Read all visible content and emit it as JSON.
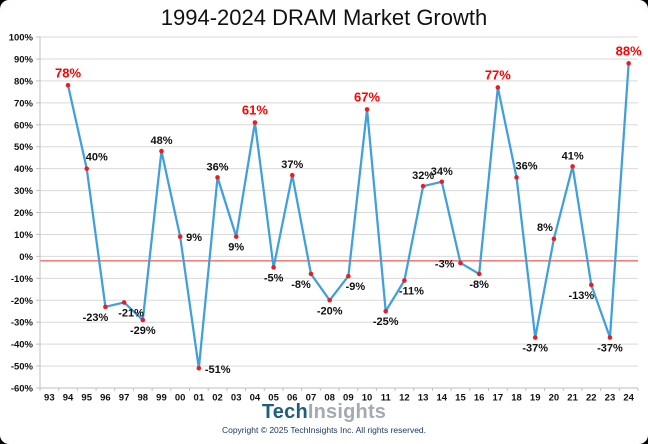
{
  "title": "1994-2024 DRAM Market Growth",
  "footer": {
    "logo_part1": "Tech",
    "logo_part2": "Insights",
    "copyright": "Copyright © 2025 TechInsights Inc.  All rights reserved."
  },
  "colors": {
    "line": "#3fa0dc",
    "marker": "#ec1c24",
    "red_label": "#fe0000",
    "black_label": "#111111",
    "gridline": "#d9d9d9",
    "axis": "#bfbfbf",
    "zero_line": "#f08080",
    "logo_tech": "#1e5f7e",
    "logo_insights": "#a3abb1"
  },
  "chart_data": {
    "type": "line",
    "title": "1994-2024 DRAM Market Growth",
    "xlabel": "",
    "ylabel": "",
    "ylim": [
      -60,
      100
    ],
    "y_tick_step": 10,
    "y_tick_suffix": "%",
    "grid": true,
    "legend": false,
    "red_zero_line_value": -2,
    "categories": [
      "93",
      "94",
      "95",
      "96",
      "97",
      "98",
      "99",
      "00",
      "01",
      "02",
      "03",
      "04",
      "05",
      "06",
      "07",
      "08",
      "09",
      "10",
      "11",
      "12",
      "13",
      "14",
      "15",
      "16",
      "17",
      "18",
      "19",
      "20",
      "21",
      "22",
      "23",
      "24"
    ],
    "points": [
      {
        "year": "93",
        "value": null
      },
      {
        "year": "94",
        "value": 78,
        "label": "78%",
        "red": true,
        "pos": "above"
      },
      {
        "year": "95",
        "value": 40,
        "label": "40%",
        "red": false,
        "pos": "above-right"
      },
      {
        "year": "96",
        "value": -23,
        "label": "-23%",
        "red": false,
        "pos": "below-left"
      },
      {
        "year": "97",
        "value": -21,
        "label": "-21%",
        "red": false,
        "pos": "below-right"
      },
      {
        "year": "98",
        "value": -29,
        "label": "-29%",
        "red": false,
        "pos": "below"
      },
      {
        "year": "99",
        "value": 48,
        "label": "48%",
        "red": false,
        "pos": "above"
      },
      {
        "year": "00",
        "value": 9,
        "label": "9%",
        "red": false,
        "pos": "right"
      },
      {
        "year": "01",
        "value": -51,
        "label": "-51%",
        "red": false,
        "pos": "right"
      },
      {
        "year": "02",
        "value": 36,
        "label": "36%",
        "red": false,
        "pos": "above"
      },
      {
        "year": "03",
        "value": 9,
        "label": "9%",
        "red": false,
        "pos": "below"
      },
      {
        "year": "04",
        "value": 61,
        "label": "61%",
        "red": true,
        "pos": "above"
      },
      {
        "year": "05",
        "value": -5,
        "label": "-5%",
        "red": false,
        "pos": "below"
      },
      {
        "year": "06",
        "value": 37,
        "label": "37%",
        "red": false,
        "pos": "above"
      },
      {
        "year": "07",
        "value": -8,
        "label": "-8%",
        "red": false,
        "pos": "below-left"
      },
      {
        "year": "08",
        "value": -20,
        "label": "-20%",
        "red": false,
        "pos": "below"
      },
      {
        "year": "09",
        "value": -9,
        "label": "-9%",
        "red": false,
        "pos": "below-right"
      },
      {
        "year": "10",
        "value": 67,
        "label": "67%",
        "red": true,
        "pos": "above"
      },
      {
        "year": "11",
        "value": -25,
        "label": "-25%",
        "red": false,
        "pos": "below"
      },
      {
        "year": "12",
        "value": -11,
        "label": "-11%",
        "red": false,
        "pos": "below-right"
      },
      {
        "year": "13",
        "value": 32,
        "label": "32%",
        "red": false,
        "pos": "above"
      },
      {
        "year": "14",
        "value": 34,
        "label": "34%",
        "red": false,
        "pos": "above"
      },
      {
        "year": "15",
        "value": -3,
        "label": "-3%",
        "red": false,
        "pos": "left"
      },
      {
        "year": "16",
        "value": -8,
        "label": "-8%",
        "red": false,
        "pos": "below"
      },
      {
        "year": "17",
        "value": 77,
        "label": "77%",
        "red": true,
        "pos": "above"
      },
      {
        "year": "18",
        "value": 36,
        "label": "36%",
        "red": false,
        "pos": "above-right"
      },
      {
        "year": "19",
        "value": -37,
        "label": "-37%",
        "red": false,
        "pos": "below"
      },
      {
        "year": "20",
        "value": 8,
        "label": "8%",
        "red": false,
        "pos": "above-left"
      },
      {
        "year": "21",
        "value": 41,
        "label": "41%",
        "red": false,
        "pos": "above"
      },
      {
        "year": "22",
        "value": -13,
        "label": "-13%",
        "red": false,
        "pos": "below-left"
      },
      {
        "year": "23",
        "value": -37,
        "label": "-37%",
        "red": false,
        "pos": "below"
      },
      {
        "year": "24",
        "value": 88,
        "label": "88%",
        "red": true,
        "pos": "above"
      }
    ]
  }
}
